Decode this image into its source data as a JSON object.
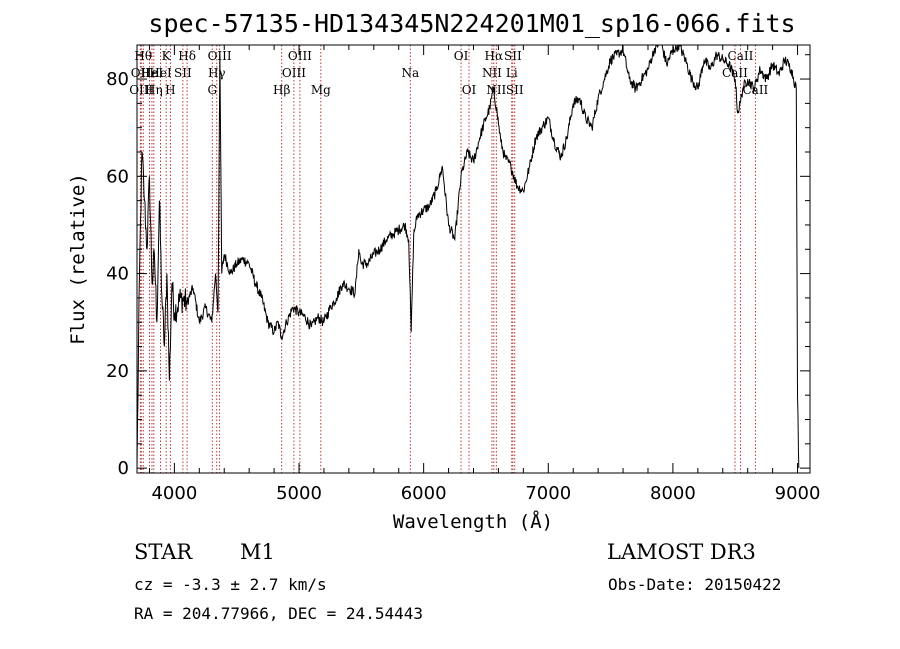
{
  "chart_data": {
    "type": "line",
    "title": "spec-57135-HD134345N224201M01_sp16-066.fits",
    "xlabel": "Wavelength (Å)",
    "ylabel": "Flux (relative)",
    "xlim": [
      3700,
      9100
    ],
    "ylim": [
      -1,
      87
    ],
    "xticks": [
      4000,
      5000,
      6000,
      7000,
      8000,
      9000
    ],
    "yticks": [
      0,
      20,
      40,
      60,
      80
    ],
    "grid": false,
    "series": [
      {
        "values_x": [
          3700,
          3720,
          3740,
          3760,
          3780,
          3800,
          3820,
          3840,
          3860,
          3880,
          3900,
          3920,
          3940,
          3960,
          3980,
          4000,
          4050,
          4100,
          4150,
          4200,
          4250,
          4300,
          4330,
          4350,
          4365,
          4380,
          4400,
          4450,
          4500,
          4550,
          4600,
          4650,
          4700,
          4750,
          4800,
          4830,
          4860,
          4900,
          4950,
          5000,
          5050,
          5100,
          5150,
          5200,
          5250,
          5300,
          5350,
          5400,
          5450,
          5470,
          5480,
          5500,
          5550,
          5600,
          5650,
          5700,
          5750,
          5800,
          5850,
          5880,
          5900,
          5920,
          5950,
          6000,
          6050,
          6100,
          6150,
          6200,
          6250,
          6300,
          6350,
          6400,
          6450,
          6500,
          6530,
          6560,
          6590,
          6620,
          6650,
          6700,
          6750,
          6800,
          6850,
          6900,
          6950,
          7000,
          7050,
          7100,
          7150,
          7200,
          7250,
          7300,
          7350,
          7400,
          7450,
          7500,
          7550,
          7600,
          7650,
          7700,
          7750,
          7800,
          7850,
          7900,
          7950,
          8000,
          8050,
          8100,
          8150,
          8200,
          8250,
          8300,
          8350,
          8400,
          8450,
          8500,
          8520,
          8540,
          8560,
          8600,
          8650,
          8700,
          8750,
          8800,
          8850,
          8900,
          8950,
          8990,
          9000,
          9010
        ],
        "values_y": [
          0,
          40,
          65,
          55,
          45,
          60,
          38,
          44,
          30,
          55,
          35,
          25,
          40,
          18,
          38,
          32,
          35,
          34,
          37,
          30,
          33,
          30,
          40,
          32,
          85,
          40,
          44,
          40,
          42,
          43,
          42,
          38,
          35,
          30,
          28,
          30,
          27,
          30,
          33,
          32,
          31,
          29,
          31,
          30,
          33,
          35,
          38,
          37,
          36,
          42,
          45,
          42,
          42,
          44,
          45,
          47,
          48,
          49,
          50,
          47,
          28,
          48,
          52,
          53,
          54,
          57,
          62,
          50,
          47,
          60,
          65,
          63,
          68,
          72,
          74,
          78,
          73,
          67,
          64,
          62,
          58,
          57,
          62,
          68,
          70,
          72,
          67,
          64,
          68,
          75,
          76,
          72,
          70,
          76,
          80,
          84,
          85,
          86,
          80,
          78,
          80,
          82,
          86,
          88,
          83,
          86,
          87,
          84,
          80,
          78,
          84,
          82,
          85,
          84,
          83,
          80,
          73,
          75,
          78,
          80,
          78,
          82,
          80,
          83,
          81,
          84,
          82,
          78,
          15,
          0
        ]
      }
    ],
    "lines": [
      {
        "x": 3750,
        "label": "Hθ",
        "row": 1
      },
      {
        "x": 3727,
        "label": "OII",
        "row": 2
      },
      {
        "x": 3734,
        "label": "OIII",
        "row": 3
      },
      {
        "x": 3800,
        "label": "Hε",
        "row": 2
      },
      {
        "x": 3820,
        "label": "HeI",
        "row": 2
      },
      {
        "x": 3835,
        "label": "Hη",
        "row": 3
      },
      {
        "x": 3889,
        "label": "HeI",
        "row": 2
      },
      {
        "x": 3934,
        "label": "K",
        "row": 1
      },
      {
        "x": 3968,
        "label": "H",
        "row": 3
      },
      {
        "x": 4068,
        "label": "SII",
        "row": 2
      },
      {
        "x": 4102,
        "label": "Hδ",
        "row": 1
      },
      {
        "x": 4304,
        "label": "G",
        "row": 3
      },
      {
        "x": 4340,
        "label": "Hγ",
        "row": 2
      },
      {
        "x": 4363,
        "label": "OIII",
        "row": 1
      },
      {
        "x": 4861,
        "label": "Hβ",
        "row": 3
      },
      {
        "x": 4959,
        "label": "OIII",
        "row": 2
      },
      {
        "x": 5007,
        "label": "OIII",
        "row": 1
      },
      {
        "x": 5175,
        "label": "Mg",
        "row": 3
      },
      {
        "x": 5893,
        "label": "Na",
        "row": 2
      },
      {
        "x": 6300,
        "label": "OI",
        "row": 1
      },
      {
        "x": 6364,
        "label": "OI",
        "row": 3
      },
      {
        "x": 6548,
        "label": "NII",
        "row": 2
      },
      {
        "x": 6563,
        "label": "Hα",
        "row": 1
      },
      {
        "x": 6583,
        "label": "NII",
        "row": 3
      },
      {
        "x": 6707,
        "label": "Li",
        "row": 2
      },
      {
        "x": 6716,
        "label": "SII",
        "row": 1
      },
      {
        "x": 6731,
        "label": "SII",
        "row": 3
      },
      {
        "x": 8498,
        "label": "CaII",
        "row": 2
      },
      {
        "x": 8542,
        "label": "CaII",
        "row": 1
      },
      {
        "x": 8662,
        "label": "CaII",
        "row": 3
      }
    ]
  },
  "footer": {
    "object_type": "STAR",
    "subclass": "M1",
    "survey": "LAMOST DR3",
    "cz": "cz = -3.3 ± 2.7 km/s",
    "obs_date": "Obs-Date: 20150422",
    "coords": "RA = 204.77966, DEC =  24.54443"
  }
}
